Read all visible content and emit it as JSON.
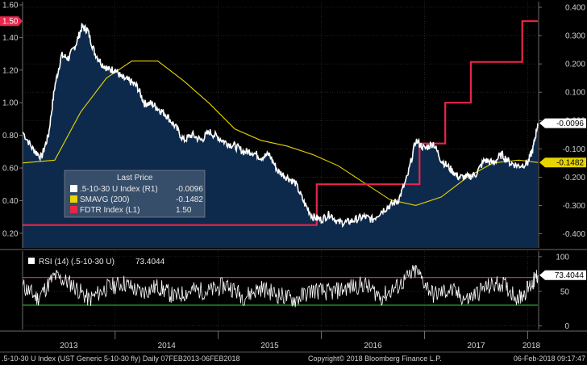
{
  "chart_data": [
    {
      "type": "line",
      "panel": "price",
      "xlim": [
        "2013-02-07",
        "2018-02-06"
      ],
      "x_tick_labels": [
        "2013",
        "2014",
        "2015",
        "2016",
        "2017",
        "2018"
      ],
      "right_axis": {
        "ylim": [
          -0.45,
          0.42
        ],
        "ticks": [
          "0.400",
          "0.300",
          "0.200",
          "0.100",
          "0.000",
          "-0.100",
          "-0.200",
          "-0.300",
          "-0.400"
        ]
      },
      "left_axis": {
        "ylim": [
          0.11,
          1.62
        ],
        "ticks": [
          "1.60",
          "1.40",
          "1.20",
          "1.00",
          "0.80",
          "0.60",
          "0.40",
          "0.20"
        ]
      },
      "legend": {
        "title": "Last Price",
        "entries": [
          {
            "label": ".5-10-30 U Index  (R1)",
            "value": "-0.0096",
            "color": "#ffffff"
          },
          {
            "label": "SMAVG (200)",
            "value": "-0.1482",
            "color": "#e8d400"
          },
          {
            "label": "FDTR Index  (L1)",
            "value": "1.50",
            "color": "#e8254a"
          }
        ]
      },
      "last_value_tags": [
        {
          "text": "-0.0096",
          "axis": "right",
          "y": -0.0096,
          "bg": "#ffffff",
          "fg": "#000000"
        },
        {
          "text": "-0.1482",
          "axis": "right",
          "y": -0.1482,
          "bg": "#e8d400",
          "fg": "#000000"
        },
        {
          "text": "1.50",
          "axis": "left",
          "y": 1.5,
          "bg": "#e8254a",
          "fg": "#ffffff"
        }
      ],
      "series": [
        {
          "name": ".5-10-30 U Index (R1)",
          "axis": "right",
          "color": "#ffffff",
          "fill": "#0d2a4c",
          "x": [
            "2013-02-07",
            "2013-03-15",
            "2013-04-15",
            "2013-05-10",
            "2013-06-01",
            "2013-06-25",
            "2013-07-20",
            "2013-08-15",
            "2013-09-05",
            "2013-09-25",
            "2013-10-20",
            "2013-11-15",
            "2013-12-10",
            "2014-01-01",
            "2014-01-25",
            "2014-02-20",
            "2014-03-20",
            "2014-04-15",
            "2014-05-10",
            "2014-06-05",
            "2014-07-01",
            "2014-08-01",
            "2014-09-01",
            "2014-10-01",
            "2014-11-01",
            "2014-12-01",
            "2015-01-01",
            "2015-02-01",
            "2015-03-01",
            "2015-04-01",
            "2015-05-01",
            "2015-06-01",
            "2015-07-01",
            "2015-08-01",
            "2015-09-01",
            "2015-10-01",
            "2015-11-01",
            "2015-12-01",
            "2016-01-01",
            "2016-02-01",
            "2016-03-01",
            "2016-04-01",
            "2016-05-01",
            "2016-06-01",
            "2016-07-01",
            "2016-08-01",
            "2016-09-01",
            "2016-10-01",
            "2016-11-01",
            "2016-12-01",
            "2017-01-01",
            "2017-02-01",
            "2017-03-01",
            "2017-04-01",
            "2017-05-01",
            "2017-06-01",
            "2017-07-01",
            "2017-08-01",
            "2017-09-01",
            "2017-10-01",
            "2017-11-01",
            "2017-12-01",
            "2018-01-01",
            "2018-01-20",
            "2018-02-06"
          ],
          "values": [
            -0.04,
            -0.1,
            -0.13,
            -0.05,
            0.12,
            0.23,
            0.22,
            0.27,
            0.33,
            0.32,
            0.24,
            0.2,
            0.18,
            0.18,
            0.15,
            0.14,
            0.12,
            0.06,
            0.06,
            0.04,
            0.02,
            -0.02,
            -0.07,
            -0.05,
            -0.07,
            -0.04,
            -0.06,
            -0.08,
            -0.09,
            -0.11,
            -0.11,
            -0.13,
            -0.12,
            -0.18,
            -0.2,
            -0.22,
            -0.29,
            -0.34,
            -0.35,
            -0.33,
            -0.36,
            -0.36,
            -0.35,
            -0.34,
            -0.35,
            -0.32,
            -0.3,
            -0.28,
            -0.2,
            -0.07,
            -0.1,
            -0.08,
            -0.14,
            -0.17,
            -0.2,
            -0.2,
            -0.19,
            -0.14,
            -0.15,
            -0.12,
            -0.15,
            -0.16,
            -0.15,
            -0.1,
            -0.0096
          ]
        },
        {
          "name": "SMAVG (200)",
          "axis": "right",
          "color": "#e8d400",
          "x": [
            "2013-02-07",
            "2013-06-01",
            "2013-09-01",
            "2013-12-01",
            "2014-03-01",
            "2014-06-01",
            "2014-09-01",
            "2014-12-01",
            "2015-03-01",
            "2015-06-01",
            "2015-09-01",
            "2015-12-01",
            "2016-03-01",
            "2016-06-01",
            "2016-09-01",
            "2016-12-01",
            "2017-03-01",
            "2017-06-01",
            "2017-09-01",
            "2017-12-01",
            "2018-02-06"
          ],
          "values": [
            -0.15,
            -0.14,
            0.03,
            0.15,
            0.21,
            0.21,
            0.14,
            0.06,
            -0.03,
            -0.07,
            -0.09,
            -0.12,
            -0.16,
            -0.22,
            -0.28,
            -0.3,
            -0.27,
            -0.2,
            -0.15,
            -0.14,
            -0.1482
          ]
        },
        {
          "name": "FDTR Index (L1)",
          "axis": "left",
          "color": "#e8254a",
          "step": true,
          "x": [
            "2013-02-07",
            "2015-12-16",
            "2016-12-14",
            "2017-03-15",
            "2017-06-14",
            "2017-12-13",
            "2018-02-06"
          ],
          "values": [
            0.25,
            0.5,
            0.75,
            1.0,
            1.25,
            1.5,
            1.5
          ]
        }
      ]
    },
    {
      "type": "line",
      "panel": "rsi",
      "xlim": [
        "2013-02-07",
        "2018-02-06"
      ],
      "ylim": [
        -5,
        108
      ],
      "ticks": [
        "100",
        "50",
        "0"
      ],
      "reference_lines": [
        {
          "y": 70,
          "color": "#d92a2a"
        },
        {
          "y": 30,
          "color": "#2ac42a"
        }
      ],
      "legend": {
        "label": "RSI (14)  (.5-10-30 U)",
        "value": "73.4044",
        "color": "#ffffff"
      },
      "last_value_tag": {
        "text": "73.4044",
        "y": 73.4044
      },
      "series": [
        {
          "name": "RSI (14) (.5-10-30 U)",
          "color": "#ffffff",
          "x": [
            "2013-02-07",
            "2013-04-01",
            "2013-06-01",
            "2013-08-01",
            "2013-10-01",
            "2013-12-01",
            "2014-02-01",
            "2014-04-01",
            "2014-06-01",
            "2014-08-01",
            "2014-10-01",
            "2014-12-01",
            "2015-02-01",
            "2015-04-01",
            "2015-06-01",
            "2015-08-01",
            "2015-10-01",
            "2015-12-01",
            "2016-02-01",
            "2016-04-01",
            "2016-06-01",
            "2016-08-01",
            "2016-10-01",
            "2016-12-01",
            "2017-02-01",
            "2017-04-01",
            "2017-06-01",
            "2017-08-01",
            "2017-10-01",
            "2017-12-01",
            "2018-01-15",
            "2018-02-06"
          ],
          "values": [
            58,
            40,
            72,
            60,
            38,
            55,
            62,
            48,
            57,
            42,
            52,
            50,
            60,
            42,
            55,
            45,
            38,
            52,
            48,
            55,
            60,
            42,
            58,
            80,
            45,
            52,
            38,
            55,
            62,
            40,
            60,
            73.4044
          ]
        }
      ]
    }
  ],
  "footer": {
    "left": ".5-10-30 U Index (UST Generic 5-10-30 fly)  Daily 07FEB2013-06FEB2018",
    "center": "Copyright© 2018 Bloomberg Finance L.P.",
    "right": "06-Feb-2018 09:17:47"
  }
}
